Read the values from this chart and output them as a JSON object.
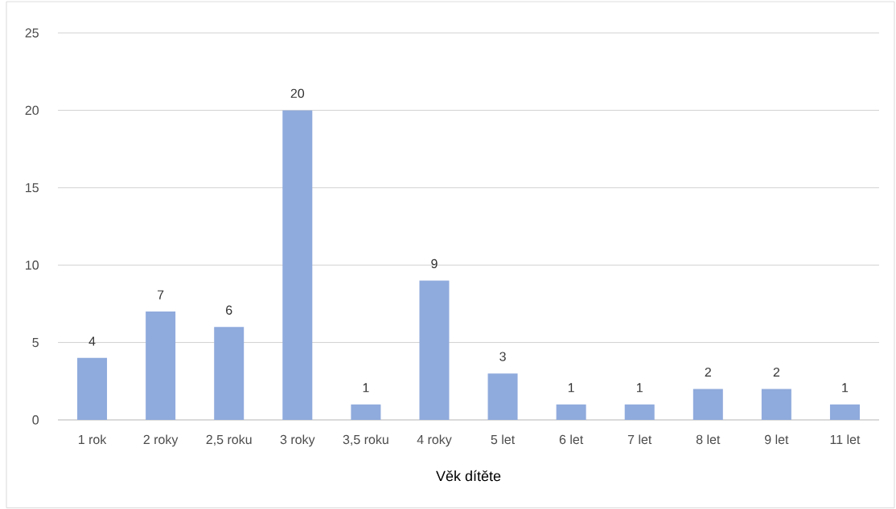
{
  "chart_data": {
    "type": "bar",
    "xlabel": "Věk dítěte",
    "categories": [
      "1 rok",
      "2 roky",
      "2,5 roku",
      "3 roky",
      "3,5 roku",
      "4 roky",
      "5 let",
      "6 let",
      "7 let",
      "8 let",
      "9 let",
      "11 let"
    ],
    "values": [
      4,
      7,
      6,
      20,
      1,
      9,
      3,
      1,
      1,
      2,
      2,
      1
    ],
    "color": "#8faadc",
    "ylim": [
      0,
      25
    ],
    "yticks": [
      0,
      5,
      10,
      15,
      20,
      25
    ],
    "grid": "y",
    "data_labels": true
  }
}
